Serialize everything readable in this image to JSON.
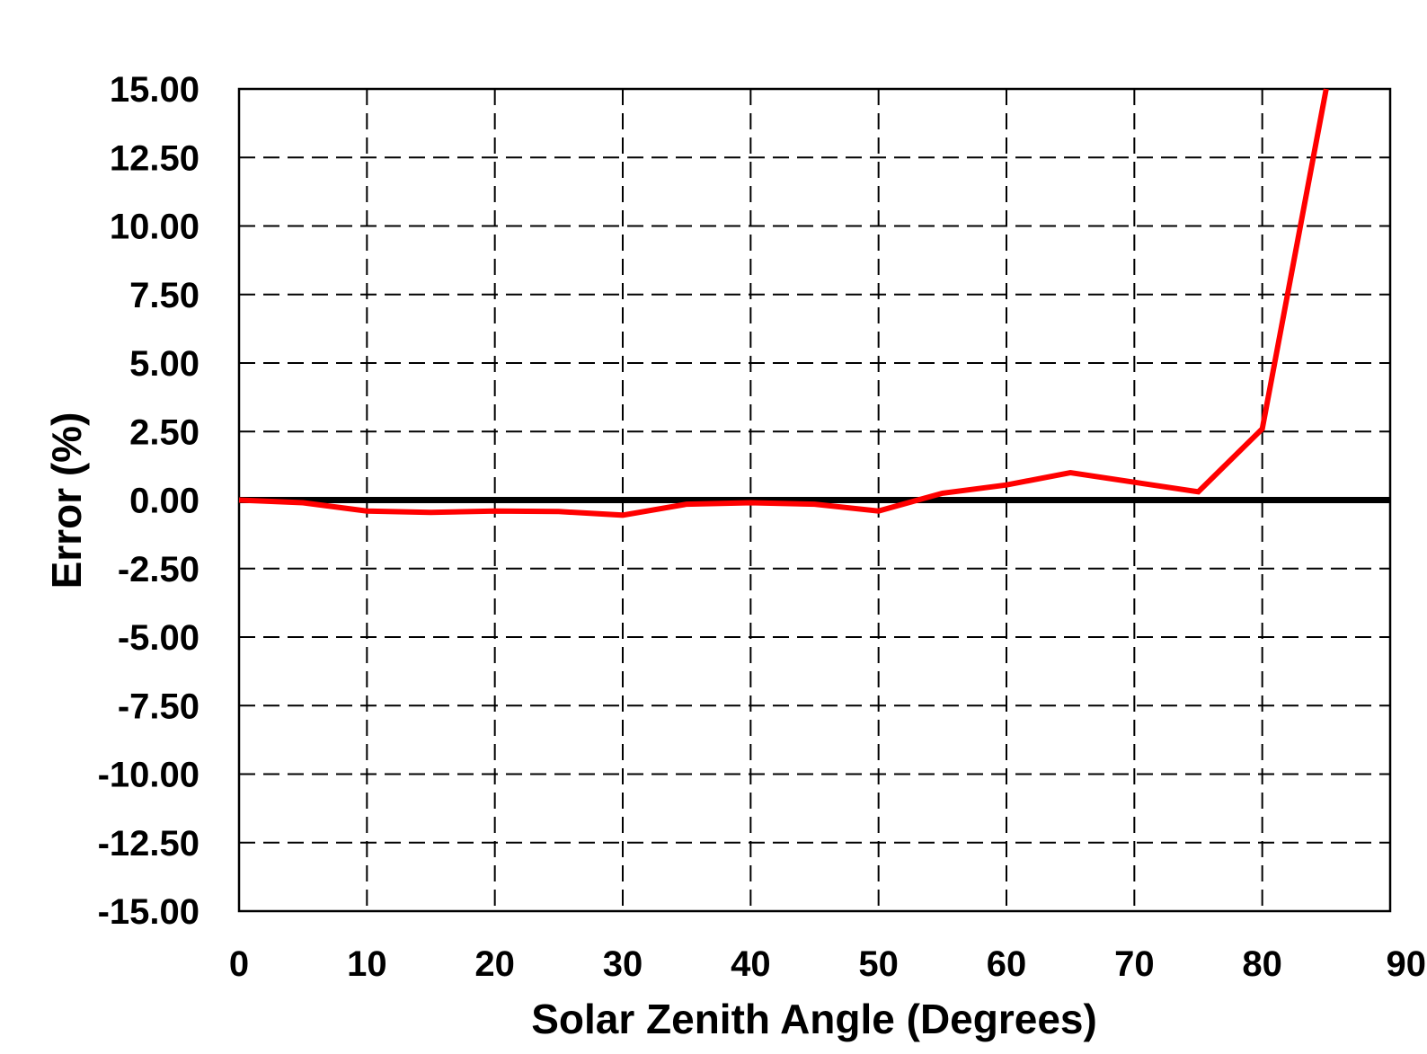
{
  "chart_data": {
    "type": "line",
    "title": "",
    "xlabel": "Solar Zenith Angle (Degrees)",
    "ylabel": "Error (%)",
    "xlim": [
      0,
      90
    ],
    "ylim": [
      -15,
      15
    ],
    "x_ticks": [
      "0",
      "10",
      "20",
      "30",
      "40",
      "50",
      "60",
      "70",
      "80",
      "90"
    ],
    "y_ticks": [
      "15.00",
      "12.50",
      "10.00",
      "7.50",
      "5.00",
      "2.50",
      "0.00",
      "-2.50",
      "-5.00",
      "-7.50",
      "-10.00",
      "-12.50",
      "-15.00"
    ],
    "grid": true,
    "series": [
      {
        "color": "#ff0000",
        "x": [
          0,
          5,
          10,
          15,
          20,
          25,
          30,
          35,
          40,
          45,
          50,
          55,
          60,
          65,
          70,
          75,
          80,
          85
        ],
        "y": [
          0.0,
          -0.1,
          -0.4,
          -0.45,
          -0.4,
          -0.42,
          -0.55,
          -0.15,
          -0.1,
          -0.15,
          -0.4,
          0.25,
          0.55,
          1.0,
          0.65,
          0.3,
          2.6,
          15.0
        ]
      }
    ],
    "reference_line": {
      "y": 0.0,
      "color": "#000000"
    }
  }
}
